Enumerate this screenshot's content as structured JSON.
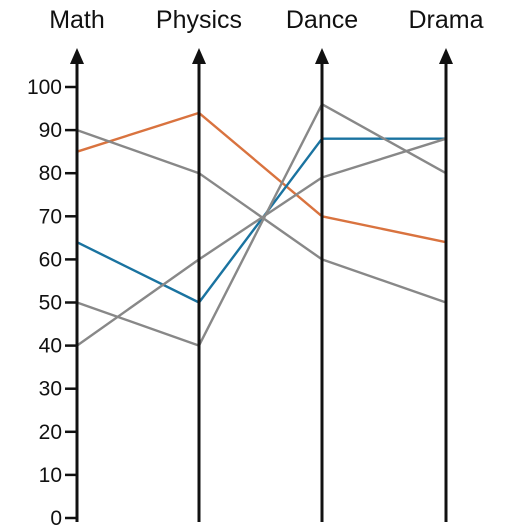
{
  "chart_data": {
    "type": "parallel_coordinates",
    "dimensions": [
      "Math",
      "Physics",
      "Dance",
      "Drama"
    ],
    "y_axis": {
      "range": [
        0,
        100
      ],
      "ticks": [
        "0",
        "10",
        "20",
        "30",
        "40",
        "50",
        "60",
        "70",
        "80",
        "90",
        "100"
      ]
    },
    "series": [
      {
        "values": [
          85,
          94,
          70,
          64
        ],
        "color": "#d9733f"
      },
      {
        "values": [
          64,
          50,
          88,
          88
        ],
        "color": "#1a73a0"
      },
      {
        "values": [
          90,
          80,
          60,
          50
        ],
        "color": "#888888"
      },
      {
        "values": [
          50,
          40,
          96,
          80
        ],
        "color": "#888888"
      },
      {
        "values": [
          40,
          60,
          79,
          88
        ],
        "color": "#888888"
      }
    ],
    "axis_color": "#111111"
  }
}
